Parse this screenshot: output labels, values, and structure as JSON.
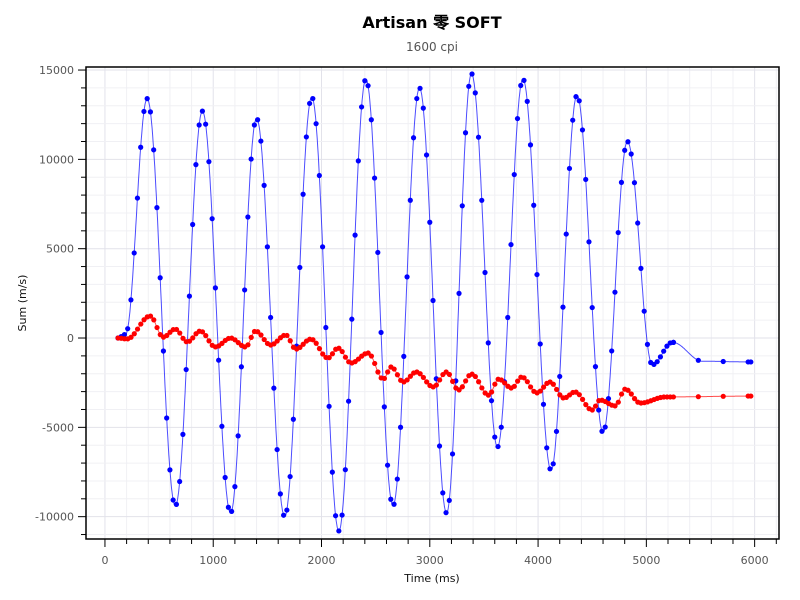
{
  "chart_data": {
    "type": "line",
    "title": "Artisan 零 SOFT",
    "subtitle": "1600 cpi",
    "xlabel": "Time (ms)",
    "ylabel": "Sum (m/s)",
    "xlim": [
      -175,
      6225
    ],
    "ylim": [
      -11250,
      15170
    ],
    "xticks": [
      0,
      1000,
      2000,
      3000,
      4000,
      5000,
      6000
    ],
    "yticks": [
      -10000,
      -5000,
      0,
      5000,
      10000,
      15000
    ],
    "grid": true,
    "legend": "none",
    "series": [
      {
        "name": "blue",
        "color": "#0000ff",
        "x": [
          120,
          190,
          390,
          650,
          900,
          1160,
          1400,
          1660,
          1910,
          2160,
          2410,
          2660,
          2905,
          3155,
          3385,
          3625,
          3860,
          4120,
          4360,
          4600,
          4825,
          5055,
          5240,
          5520,
          5965
        ],
        "y": [
          0,
          200,
          13400,
          -9400,
          12700,
          -9800,
          12300,
          -10000,
          13500,
          -10800,
          14500,
          -9400,
          14000,
          -9800,
          14800,
          -6100,
          14500,
          -7400,
          13600,
          -5300,
          11000,
          -1500,
          -240,
          -1300,
          -1340
        ]
      },
      {
        "name": "red",
        "color": "#ff0000",
        "x": [
          121,
          204,
          417,
          538,
          649,
          761,
          881,
          1020,
          1160,
          1299,
          1391,
          1531,
          1670,
          1763,
          1902,
          2059,
          2152,
          2273,
          2430,
          2570,
          2644,
          2755,
          2876,
          3033,
          3154,
          3265,
          3386,
          3544,
          3636,
          3757,
          3850,
          3989,
          4109,
          4239,
          4341,
          4499,
          4573,
          4712,
          4805,
          4944,
          5176,
          5965
        ],
        "y": [
          0,
          -50,
          1230,
          50,
          500,
          -220,
          390,
          -500,
          0,
          -500,
          390,
          -390,
          170,
          -620,
          -60,
          -1120,
          -560,
          -1400,
          -840,
          -2300,
          -1620,
          -2460,
          -1900,
          -2740,
          -1900,
          -2910,
          -2020,
          -3200,
          -2300,
          -2800,
          -2180,
          -3070,
          -2460,
          -3360,
          -3020,
          -4030,
          -3470,
          -3800,
          -2860,
          -3640,
          -3300,
          -3250
        ]
      }
    ]
  }
}
